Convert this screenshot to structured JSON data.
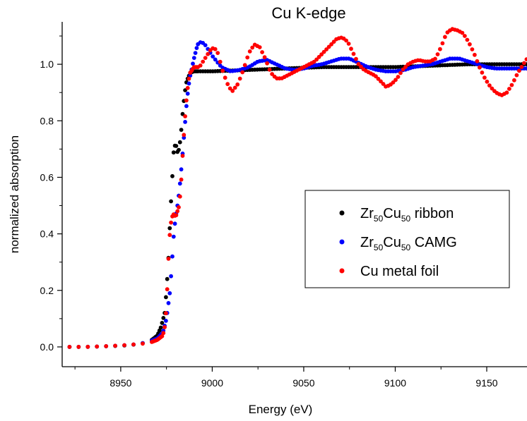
{
  "chart_data": {
    "type": "scatter",
    "title": "Cu K-edge",
    "xlabel": "Energy (eV)",
    "ylabel": "normalized absorption",
    "xlim": [
      8918,
      9172
    ],
    "ylim": [
      -0.07,
      1.15
    ],
    "xticks": [
      8950,
      9000,
      9050,
      9100,
      9150
    ],
    "yticks": [
      0.0,
      0.2,
      0.4,
      0.6,
      0.8,
      1.0
    ],
    "xtick_labels": [
      "8950",
      "9000",
      "9050",
      "9100",
      "9150"
    ],
    "ytick_labels": [
      "0.0",
      "0.2",
      "0.4",
      "0.6",
      "0.8",
      "1.0"
    ],
    "grid": false,
    "legend_position": "lower-right",
    "series": [
      {
        "name": "Zr50Cu50 ribbon",
        "legend": {
          "base1": "Zr",
          "sub1": "50",
          "base2": "Cu",
          "sub2": "50",
          "suffix": " ribbon"
        },
        "color": "#000000",
        "points": [
          [
            8922,
            0.0
          ],
          [
            8930,
            0.0
          ],
          [
            8940,
            0.002
          ],
          [
            8950,
            0.004
          ],
          [
            8960,
            0.01
          ],
          [
            8966,
            0.02
          ],
          [
            8970,
            0.04
          ],
          [
            8972,
            0.07
          ],
          [
            8974,
            0.12
          ],
          [
            8975,
            0.2
          ],
          [
            8976,
            0.3
          ],
          [
            8977,
            0.45
          ],
          [
            8978,
            0.58
          ],
          [
            8979,
            0.7
          ],
          [
            8980,
            0.72
          ],
          [
            8981,
            0.69
          ],
          [
            8982,
            0.7
          ],
          [
            8983,
            0.76
          ],
          [
            8984,
            0.84
          ],
          [
            8985,
            0.9
          ],
          [
            8986,
            0.94
          ],
          [
            8988,
            0.97
          ],
          [
            8990,
            0.975
          ],
          [
            9000,
            0.975
          ],
          [
            9020,
            0.98
          ],
          [
            9040,
            0.985
          ],
          [
            9060,
            0.99
          ],
          [
            9080,
            0.99
          ],
          [
            9100,
            0.99
          ],
          [
            9120,
            0.995
          ],
          [
            9140,
            1.0
          ],
          [
            9160,
            1.0
          ],
          [
            9172,
            1.0
          ]
        ]
      },
      {
        "name": "Zr50Cu50 CAMG",
        "legend": {
          "base1": "Zr",
          "sub1": "50",
          "base2": "Cu",
          "sub2": "50",
          "suffix": " CAMG"
        },
        "color": "#0000ff",
        "points": [
          [
            8922,
            0.0
          ],
          [
            8930,
            0.0
          ],
          [
            8940,
            0.002
          ],
          [
            8950,
            0.005
          ],
          [
            8960,
            0.01
          ],
          [
            8966,
            0.02
          ],
          [
            8970,
            0.03
          ],
          [
            8973,
            0.05
          ],
          [
            8975,
            0.1
          ],
          [
            8977,
            0.2
          ],
          [
            8978,
            0.3
          ],
          [
            8979,
            0.4
          ],
          [
            8980,
            0.46
          ],
          [
            8981,
            0.5
          ],
          [
            8982,
            0.55
          ],
          [
            8983,
            0.62
          ],
          [
            8984,
            0.7
          ],
          [
            8985,
            0.78
          ],
          [
            8986,
            0.86
          ],
          [
            8987,
            0.92
          ],
          [
            8988,
            0.96
          ],
          [
            8990,
            1.02
          ],
          [
            8992,
            1.07
          ],
          [
            8994,
            1.08
          ],
          [
            8996,
            1.07
          ],
          [
            9000,
            1.03
          ],
          [
            9005,
            0.99
          ],
          [
            9010,
            0.975
          ],
          [
            9015,
            0.98
          ],
          [
            9020,
            0.99
          ],
          [
            9025,
            1.01
          ],
          [
            9030,
            1.015
          ],
          [
            9035,
            1.0
          ],
          [
            9040,
            0.985
          ],
          [
            9045,
            0.98
          ],
          [
            9050,
            0.985
          ],
          [
            9055,
            0.995
          ],
          [
            9060,
            1.0
          ],
          [
            9065,
            1.01
          ],
          [
            9070,
            1.02
          ],
          [
            9075,
            1.02
          ],
          [
            9080,
            1.005
          ],
          [
            9085,
            0.99
          ],
          [
            9090,
            0.98
          ],
          [
            9095,
            0.975
          ],
          [
            9100,
            0.975
          ],
          [
            9105,
            0.98
          ],
          [
            9110,
            0.99
          ],
          [
            9115,
            0.995
          ],
          [
            9120,
            1.0
          ],
          [
            9125,
            1.01
          ],
          [
            9130,
            1.02
          ],
          [
            9135,
            1.02
          ],
          [
            9140,
            1.01
          ],
          [
            9145,
            1.0
          ],
          [
            9150,
            0.99
          ],
          [
            9155,
            0.985
          ],
          [
            9160,
            0.985
          ],
          [
            9165,
            0.985
          ],
          [
            9172,
            0.985
          ]
        ]
      },
      {
        "name": "Cu metal foil",
        "legend": {
          "base1": "Cu metal foil",
          "sub1": "",
          "base2": "",
          "sub2": "",
          "suffix": ""
        },
        "color": "#ff0000",
        "points": [
          [
            8922,
            0.0
          ],
          [
            8930,
            0.0
          ],
          [
            8940,
            0.002
          ],
          [
            8950,
            0.005
          ],
          [
            8960,
            0.01
          ],
          [
            8966,
            0.015
          ],
          [
            8970,
            0.025
          ],
          [
            8973,
            0.04
          ],
          [
            8974,
            0.07
          ],
          [
            8975,
            0.14
          ],
          [
            8976,
            0.3
          ],
          [
            8977,
            0.42
          ],
          [
            8978,
            0.46
          ],
          [
            8979,
            0.47
          ],
          [
            8980,
            0.46
          ],
          [
            8981,
            0.48
          ],
          [
            8982,
            0.5
          ],
          [
            8983,
            0.58
          ],
          [
            8984,
            0.7
          ],
          [
            8985,
            0.8
          ],
          [
            8986,
            0.88
          ],
          [
            8987,
            0.94
          ],
          [
            8988,
            0.97
          ],
          [
            8990,
            0.99
          ],
          [
            8993,
            0.99
          ],
          [
            8996,
            1.02
          ],
          [
            8999,
            1.05
          ],
          [
            9001,
            1.06
          ],
          [
            9003,
            1.04
          ],
          [
            9006,
            0.97
          ],
          [
            9009,
            0.92
          ],
          [
            9011,
            0.905
          ],
          [
            9014,
            0.93
          ],
          [
            9017,
            0.98
          ],
          [
            9020,
            1.04
          ],
          [
            9023,
            1.07
          ],
          [
            9026,
            1.06
          ],
          [
            9029,
            1.02
          ],
          [
            9032,
            0.97
          ],
          [
            9035,
            0.95
          ],
          [
            9038,
            0.95
          ],
          [
            9041,
            0.96
          ],
          [
            9044,
            0.97
          ],
          [
            9047,
            0.98
          ],
          [
            9050,
            0.99
          ],
          [
            9053,
            1.0
          ],
          [
            9056,
            1.01
          ],
          [
            9059,
            1.03
          ],
          [
            9062,
            1.05
          ],
          [
            9065,
            1.07
          ],
          [
            9068,
            1.09
          ],
          [
            9071,
            1.095
          ],
          [
            9074,
            1.08
          ],
          [
            9077,
            1.04
          ],
          [
            9080,
            1.0
          ],
          [
            9083,
            0.98
          ],
          [
            9086,
            0.97
          ],
          [
            9089,
            0.96
          ],
          [
            9092,
            0.94
          ],
          [
            9095,
            0.92
          ],
          [
            9098,
            0.93
          ],
          [
            9101,
            0.95
          ],
          [
            9104,
            0.98
          ],
          [
            9107,
            1.0
          ],
          [
            9110,
            1.01
          ],
          [
            9113,
            1.015
          ],
          [
            9116,
            1.01
          ],
          [
            9119,
            1.01
          ],
          [
            9122,
            1.02
          ],
          [
            9125,
            1.06
          ],
          [
            9128,
            1.11
          ],
          [
            9131,
            1.125
          ],
          [
            9134,
            1.12
          ],
          [
            9137,
            1.11
          ],
          [
            9140,
            1.08
          ],
          [
            9143,
            1.04
          ],
          [
            9146,
            0.99
          ],
          [
            9149,
            0.95
          ],
          [
            9152,
            0.92
          ],
          [
            9155,
            0.9
          ],
          [
            9158,
            0.89
          ],
          [
            9161,
            0.9
          ],
          [
            9164,
            0.93
          ],
          [
            9167,
            0.97
          ],
          [
            9170,
            1.0
          ],
          [
            9172,
            1.02
          ]
        ]
      }
    ]
  }
}
